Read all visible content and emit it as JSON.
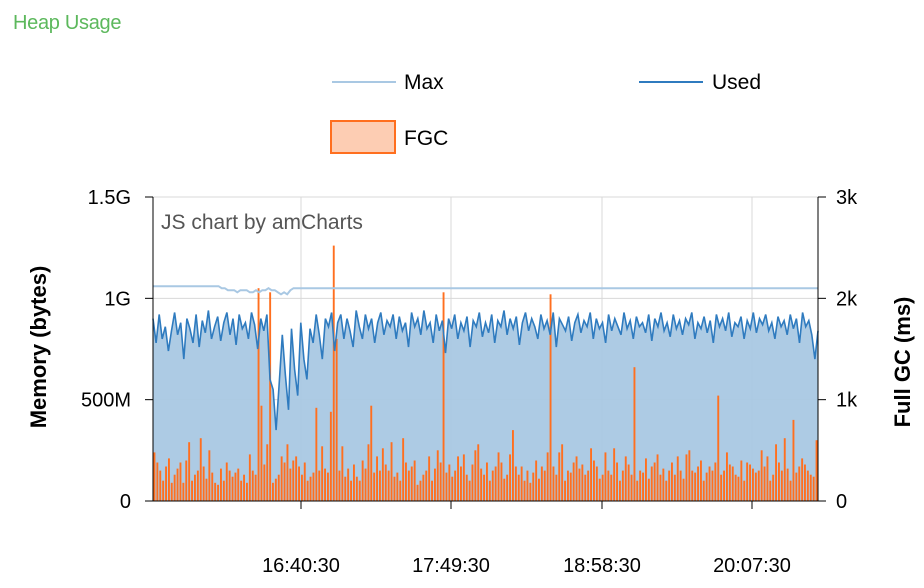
{
  "panel": {
    "title": "Heap Usage"
  },
  "legend": [
    {
      "name": "Max",
      "color": "#a9c8e3",
      "kind": "line"
    },
    {
      "name": "Used",
      "color": "#2f7bbf",
      "kind": "line"
    },
    {
      "name": "FGC",
      "color": "#ff6f1f",
      "fill": "#fdcdb3",
      "kind": "box"
    }
  ],
  "credit": "JS chart by amCharts",
  "colors": {
    "max_line": "#a9c8e3",
    "used_line": "#2f7bbf",
    "used_fill": "#a9c8e3",
    "fgc_bar": "#ff6f1f",
    "grid": "#d8d8d8",
    "axis": "#000000"
  },
  "chart_data": {
    "type": "line+bar",
    "title": "",
    "x_tick_labels": [
      "16:40:30",
      "17:49:30",
      "18:58:30",
      "20:07:30"
    ],
    "y_left": {
      "label": "Memory (bytes)",
      "range": [
        0,
        1.5
      ],
      "unit": "G",
      "ticks": [
        {
          "v": 0,
          "label": "0"
        },
        {
          "v": 0.5,
          "label": "500M"
        },
        {
          "v": 1.0,
          "label": "1G"
        },
        {
          "v": 1.5,
          "label": "1.5G"
        }
      ]
    },
    "y_right": {
      "label": "Full GC (ms)",
      "range": [
        0,
        3000
      ],
      "ticks": [
        {
          "v": 0,
          "label": "0"
        },
        {
          "v": 1000,
          "label": "1k"
        },
        {
          "v": 2000,
          "label": "2k"
        },
        {
          "v": 3000,
          "label": "3k"
        }
      ]
    },
    "grid": true,
    "series": [
      {
        "name": "Max",
        "type": "line",
        "axis": "left",
        "values": [
          1.06,
          1.06,
          1.06,
          1.06,
          1.06,
          1.06,
          1.06,
          1.06,
          1.06,
          1.06,
          1.06,
          1.06,
          1.06,
          1.06,
          1.06,
          1.06,
          1.06,
          1.06,
          1.06,
          1.06,
          1.06,
          1.06,
          1.05,
          1.05,
          1.04,
          1.04,
          1.04,
          1.03,
          1.04,
          1.04,
          1.04,
          1.03,
          1.03,
          1.04,
          1.03,
          1.04,
          1.04,
          1.05,
          1.04,
          1.04,
          1.03,
          1.02,
          1.03,
          1.02,
          1.04,
          1.05,
          1.05,
          1.05,
          1.05,
          1.05,
          1.05,
          1.05,
          1.05,
          1.05,
          1.05,
          1.05,
          1.05,
          1.05,
          1.05,
          1.05,
          1.05,
          1.05,
          1.05,
          1.05,
          1.05,
          1.05,
          1.05,
          1.05,
          1.05,
          1.05,
          1.05,
          1.05,
          1.05,
          1.05,
          1.05,
          1.05,
          1.05,
          1.05,
          1.05,
          1.05,
          1.05,
          1.05,
          1.05,
          1.05,
          1.05,
          1.05,
          1.05,
          1.05,
          1.05,
          1.05,
          1.05,
          1.05,
          1.05,
          1.05,
          1.05,
          1.05,
          1.05,
          1.05,
          1.05,
          1.05,
          1.05,
          1.05,
          1.05,
          1.05,
          1.05,
          1.05,
          1.05,
          1.05,
          1.05,
          1.05,
          1.05,
          1.05,
          1.05,
          1.05,
          1.05,
          1.05,
          1.05,
          1.05,
          1.05,
          1.05,
          1.05,
          1.05,
          1.05,
          1.05,
          1.05,
          1.05,
          1.05,
          1.05,
          1.05,
          1.05,
          1.05,
          1.05,
          1.05,
          1.05,
          1.05,
          1.05,
          1.05,
          1.05,
          1.05,
          1.05,
          1.05,
          1.05,
          1.05,
          1.05,
          1.05,
          1.05,
          1.05,
          1.05,
          1.05,
          1.05,
          1.05,
          1.05,
          1.05,
          1.05,
          1.05,
          1.05,
          1.05,
          1.05,
          1.05,
          1.05,
          1.05,
          1.05,
          1.05,
          1.05,
          1.05,
          1.05,
          1.05,
          1.05,
          1.05,
          1.05,
          1.05,
          1.05,
          1.05,
          1.05,
          1.05,
          1.05,
          1.05,
          1.05,
          1.05,
          1.05,
          1.05,
          1.05,
          1.05,
          1.05,
          1.05,
          1.05,
          1.05,
          1.05,
          1.05,
          1.05,
          1.05,
          1.05,
          1.05,
          1.05,
          1.05,
          1.05,
          1.05,
          1.05,
          1.05,
          1.05,
          1.05,
          1.05,
          1.05,
          1.05,
          1.05,
          1.05,
          1.05,
          1.05,
          1.05,
          1.05,
          1.05,
          1.05,
          1.05,
          1.05
        ]
      },
      {
        "name": "Used",
        "type": "area",
        "axis": "left",
        "values": [
          0.9,
          0.78,
          0.92,
          0.8,
          0.86,
          0.74,
          0.84,
          0.93,
          0.82,
          0.88,
          0.7,
          0.9,
          0.85,
          0.78,
          0.92,
          0.76,
          0.89,
          0.83,
          0.94,
          0.8,
          0.86,
          0.91,
          0.79,
          0.88,
          0.93,
          0.82,
          0.9,
          0.77,
          0.92,
          0.85,
          0.88,
          0.8,
          0.93,
          0.87,
          0.75,
          0.9,
          0.84,
          0.92,
          0.6,
          0.55,
          0.35,
          0.58,
          0.82,
          0.62,
          0.45,
          0.85,
          0.65,
          0.52,
          0.88,
          0.7,
          0.6,
          0.85,
          0.78,
          0.92,
          0.82,
          0.7,
          0.9,
          0.86,
          0.93,
          0.74,
          0.88,
          0.92,
          0.8,
          0.9,
          0.84,
          0.76,
          0.94,
          0.86,
          0.8,
          0.92,
          0.85,
          0.9,
          0.78,
          0.88,
          0.93,
          0.82,
          0.89,
          0.86,
          0.92,
          0.8,
          0.91,
          0.84,
          0.88,
          0.76,
          0.93,
          0.86,
          0.9,
          0.82,
          0.94,
          0.85,
          0.88,
          0.78,
          0.92,
          0.84,
          0.89,
          0.73,
          0.9,
          0.85,
          0.92,
          0.8,
          0.88,
          0.84,
          0.91,
          0.76,
          0.89,
          0.86,
          0.93,
          0.81,
          0.88,
          0.83,
          0.92,
          0.78,
          0.89,
          0.86,
          0.94,
          0.82,
          0.9,
          0.85,
          0.91,
          0.77,
          0.88,
          0.93,
          0.84,
          0.9,
          0.86,
          0.8,
          0.92,
          0.85,
          0.89,
          0.82,
          0.93,
          0.76,
          0.9,
          0.87,
          0.84,
          0.91,
          0.79,
          0.88,
          0.92,
          0.83,
          0.89,
          0.86,
          0.93,
          0.8,
          0.9,
          0.85,
          0.88,
          0.78,
          0.92,
          0.84,
          0.9,
          0.86,
          0.82,
          0.93,
          0.85,
          0.89,
          0.8,
          0.91,
          0.86,
          0.88,
          0.83,
          0.92,
          0.79,
          0.9,
          0.86,
          0.93,
          0.84,
          0.88,
          0.81,
          0.92,
          0.85,
          0.89,
          0.82,
          0.9,
          0.87,
          0.93,
          0.8,
          0.88,
          0.85,
          0.91,
          0.83,
          0.89,
          0.78,
          0.92,
          0.86,
          0.9,
          0.84,
          0.93,
          0.81,
          0.88,
          0.86,
          0.91,
          0.8,
          0.89,
          0.85,
          0.93,
          0.83,
          0.9,
          0.87,
          0.92,
          0.84,
          0.88,
          0.8,
          0.91,
          0.86,
          0.89,
          0.82,
          0.92,
          0.85,
          0.9,
          0.78,
          0.93,
          0.86,
          0.89,
          0.82,
          0.7,
          0.84
        ]
      },
      {
        "name": "FGC",
        "type": "bar",
        "axis": "right",
        "values": [
          480,
          380,
          300,
          200,
          340,
          420,
          180,
          260,
          320,
          380,
          180,
          400,
          580,
          200,
          260,
          300,
          620,
          340,
          220,
          500,
          280,
          180,
          160,
          320,
          200,
          380,
          300,
          240,
          280,
          320,
          200,
          260,
          180,
          460,
          300,
          260,
          2100,
          940,
          360,
          560,
          2060,
          180,
          220,
          260,
          440,
          380,
          560,
          320,
          400,
          440,
          340,
          260,
          380,
          200,
          240,
          280,
          920,
          300,
          540,
          320,
          280,
          880,
          2520,
          1600,
          300,
          540,
          240,
          320,
          200,
          360,
          240,
          200,
          400,
          320,
          560,
          940,
          280,
          440,
          300,
          520,
          360,
          300,
          580,
          240,
          280,
          200,
          620,
          380,
          300,
          340,
          400,
          160,
          200,
          260,
          300,
          440,
          200,
          320,
          500,
          380,
          2060,
          280,
          360,
          240,
          300,
          440,
          340,
          460,
          260,
          200,
          360,
          500,
          560,
          320,
          260,
          380,
          200,
          300,
          340,
          480,
          380,
          220,
          260,
          460,
          700,
          340,
          260,
          340,
          200,
          300,
          180,
          280,
          400,
          220,
          340,
          300,
          480,
          2040,
          340,
          260,
          480,
          560,
          200,
          300,
          280,
          380,
          440,
          320,
          360,
          260,
          300,
          520,
          400,
          340,
          220,
          260,
          480,
          300,
          260,
          520,
          380,
          200,
          300,
          440,
          360,
          260,
          1320,
          200,
          300,
          280,
          420,
          220,
          340,
          380,
          460,
          260,
          320,
          200,
          300,
          380,
          260,
          440,
          300,
          220,
          460,
          500,
          300,
          280,
          340,
          400,
          200,
          280,
          340,
          300,
          380,
          1040,
          260,
          300,
          480,
          360,
          340,
          260,
          240,
          400,
          200,
          380,
          360,
          320,
          280,
          300,
          500,
          340,
          440,
          200,
          260,
          560,
          380,
          300,
          620,
          320,
          200,
          800,
          280,
          340,
          420,
          360,
          300,
          260,
          240,
          600
        ]
      }
    ]
  }
}
